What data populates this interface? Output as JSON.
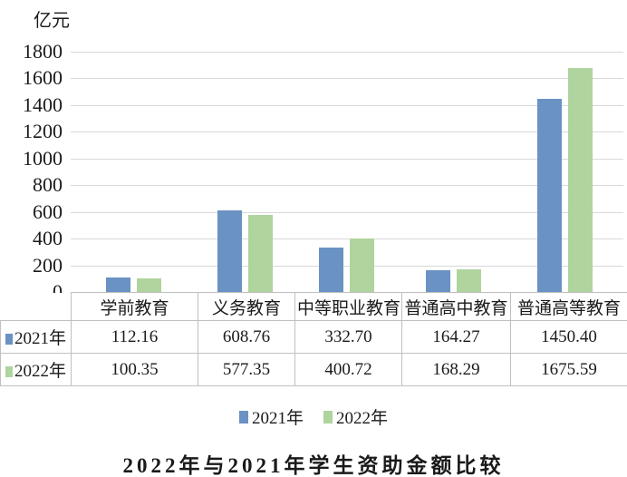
{
  "chart_data": {
    "type": "bar",
    "title": "2022年与2021年学生资助金额比较",
    "unit_label": "亿元",
    "categories": [
      "学前教育",
      "义务教育",
      "中等职业教育",
      "普通高中教育",
      "普通高等教育"
    ],
    "series": [
      {
        "name": "2021年",
        "color": "#6a92c3",
        "values": [
          112.16,
          608.76,
          332.7,
          164.27,
          1450.4
        ]
      },
      {
        "name": "2022年",
        "color": "#afd49e",
        "values": [
          100.35,
          577.35,
          400.72,
          168.29,
          1675.59
        ]
      }
    ],
    "value_format": "2-decimals",
    "ylim": [
      0,
      1800
    ],
    "ytick_step": 200,
    "yticks": [
      0,
      200,
      400,
      600,
      800,
      1000,
      1200,
      1400,
      1600,
      1800
    ],
    "grid": true,
    "legend_position": "bottom",
    "data_table_shown": true
  },
  "colors": {
    "gridline": "#d9d9d9",
    "table_border": "#c0c0c0",
    "text": "#1a1a1a",
    "background": "#ffffff"
  }
}
